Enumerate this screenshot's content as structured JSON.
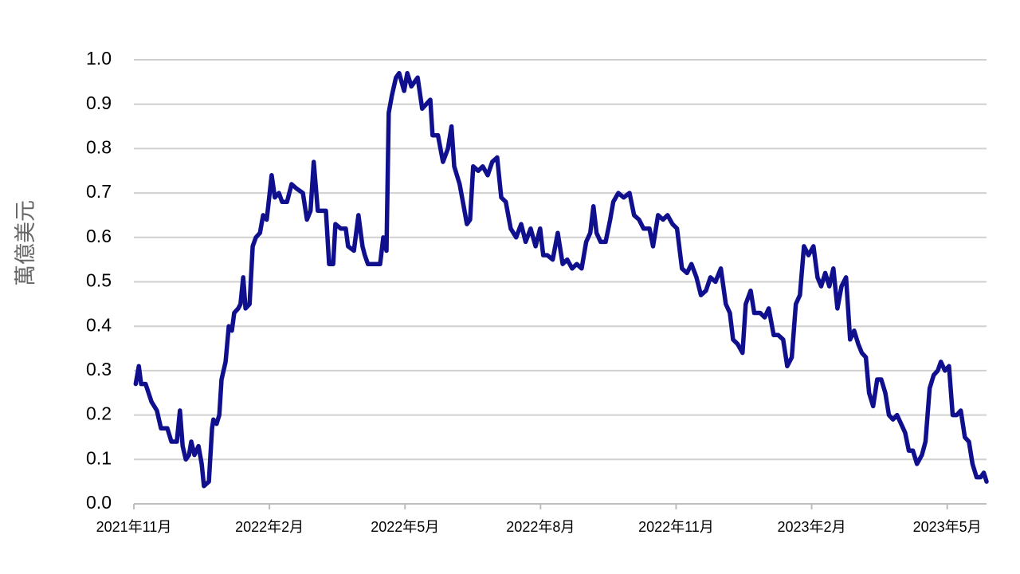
{
  "chart_data": {
    "type": "line",
    "y_label": "萬億美元",
    "color": "#10108f",
    "grid": true,
    "xlim": [
      0,
      18.87
    ],
    "xticks": [
      {
        "value": 0,
        "label": "2021年11月"
      },
      {
        "value": 3,
        "label": "2022年2月"
      },
      {
        "value": 6,
        "label": "2022年5月"
      },
      {
        "value": 9,
        "label": "2022年8月"
      },
      {
        "value": 12,
        "label": "2022年11月"
      },
      {
        "value": 15,
        "label": "2023年2月"
      },
      {
        "value": 18,
        "label": "2023年5月"
      }
    ],
    "ylim": [
      0,
      1
    ],
    "yticks": [
      {
        "value": 0,
        "label": "0.0"
      },
      0.1,
      0.2,
      0.3,
      0.4,
      0.5,
      0.6,
      0.7,
      0.8,
      0.9,
      {
        "value": 1,
        "label": "1.0"
      }
    ],
    "x": [
      0.04,
      0.11,
      0.16,
      0.26,
      0.39,
      0.51,
      0.6,
      0.74,
      0.83,
      0.95,
      1.02,
      1.08,
      1.15,
      1.22,
      1.27,
      1.34,
      1.43,
      1.5,
      1.55,
      1.66,
      1.73,
      1.76,
      1.83,
      1.89,
      1.94,
      2.03,
      2.1,
      2.17,
      2.22,
      2.31,
      2.36,
      2.42,
      2.47,
      2.56,
      2.63,
      2.7,
      2.79,
      2.86,
      2.94,
      3.05,
      3.12,
      3.21,
      3.28,
      3.39,
      3.49,
      3.6,
      3.74,
      3.83,
      3.91,
      3.98,
      4.07,
      4.16,
      4.25,
      4.32,
      4.41,
      4.46,
      4.58,
      4.69,
      4.74,
      4.87,
      4.97,
      5.06,
      5.11,
      5.18,
      5.32,
      5.45,
      5.52,
      5.59,
      5.64,
      5.71,
      5.8,
      5.87,
      5.98,
      6.05,
      6.14,
      6.28,
      6.38,
      6.47,
      6.56,
      6.61,
      6.73,
      6.84,
      6.95,
      7.03,
      7.09,
      7.21,
      7.3,
      7.37,
      7.44,
      7.51,
      7.62,
      7.72,
      7.83,
      7.93,
      8.04,
      8.13,
      8.23,
      8.34,
      8.46,
      8.57,
      8.67,
      8.78,
      8.89,
      8.99,
      9.06,
      9.15,
      9.27,
      9.38,
      9.49,
      9.59,
      9.7,
      9.8,
      9.91,
      10.01,
      10.1,
      10.17,
      10.24,
      10.33,
      10.44,
      10.54,
      10.61,
      10.72,
      10.84,
      10.97,
      11.07,
      11.18,
      11.28,
      11.41,
      11.49,
      11.6,
      11.71,
      11.81,
      11.92,
      12.02,
      12.13,
      12.24,
      12.34,
      12.45,
      12.55,
      12.66,
      12.76,
      12.87,
      12.99,
      13.1,
      13.19,
      13.26,
      13.36,
      13.47,
      13.54,
      13.65,
      13.73,
      13.86,
      13.96,
      14.05,
      14.16,
      14.26,
      14.37,
      14.46,
      14.56,
      14.65,
      14.74,
      14.83,
      14.93,
      15.04,
      15.13,
      15.21,
      15.3,
      15.39,
      15.48,
      15.57,
      15.66,
      15.76,
      15.85,
      15.94,
      16.03,
      16.11,
      16.2,
      16.27,
      16.36,
      16.45,
      16.54,
      16.63,
      16.71,
      16.8,
      16.89,
      16.98,
      17.07,
      17.15,
      17.24,
      17.33,
      17.44,
      17.52,
      17.61,
      17.7,
      17.79,
      17.86,
      17.95,
      18.04,
      18.12,
      18.21,
      18.3,
      18.39,
      18.48,
      18.56,
      18.65,
      18.74,
      18.81,
      18.87
    ],
    "series": [
      {
        "values": [
          0.27,
          0.31,
          0.27,
          0.27,
          0.23,
          0.21,
          0.17,
          0.17,
          0.14,
          0.14,
          0.21,
          0.13,
          0.1,
          0.11,
          0.14,
          0.11,
          0.13,
          0.09,
          0.04,
          0.05,
          0.17,
          0.19,
          0.18,
          0.2,
          0.28,
          0.32,
          0.4,
          0.39,
          0.43,
          0.44,
          0.45,
          0.51,
          0.44,
          0.45,
          0.58,
          0.6,
          0.61,
          0.65,
          0.64,
          0.74,
          0.69,
          0.7,
          0.68,
          0.68,
          0.72,
          0.71,
          0.7,
          0.64,
          0.66,
          0.77,
          0.66,
          0.66,
          0.66,
          0.54,
          0.54,
          0.63,
          0.62,
          0.62,
          0.58,
          0.57,
          0.65,
          0.58,
          0.56,
          0.54,
          0.54,
          0.54,
          0.6,
          0.57,
          0.88,
          0.92,
          0.96,
          0.97,
          0.93,
          0.97,
          0.94,
          0.96,
          0.89,
          0.9,
          0.91,
          0.83,
          0.83,
          0.77,
          0.8,
          0.85,
          0.76,
          0.72,
          0.67,
          0.63,
          0.64,
          0.76,
          0.75,
          0.76,
          0.74,
          0.77,
          0.78,
          0.69,
          0.68,
          0.62,
          0.6,
          0.63,
          0.59,
          0.62,
          0.58,
          0.62,
          0.56,
          0.56,
          0.55,
          0.61,
          0.54,
          0.55,
          0.53,
          0.54,
          0.53,
          0.59,
          0.61,
          0.67,
          0.61,
          0.59,
          0.59,
          0.64,
          0.68,
          0.7,
          0.69,
          0.7,
          0.65,
          0.64,
          0.62,
          0.62,
          0.58,
          0.65,
          0.64,
          0.65,
          0.63,
          0.62,
          0.53,
          0.52,
          0.54,
          0.51,
          0.47,
          0.48,
          0.51,
          0.5,
          0.53,
          0.45,
          0.43,
          0.37,
          0.36,
          0.34,
          0.45,
          0.48,
          0.43,
          0.43,
          0.42,
          0.44,
          0.38,
          0.38,
          0.37,
          0.31,
          0.33,
          0.45,
          0.47,
          0.58,
          0.56,
          0.58,
          0.51,
          0.49,
          0.52,
          0.49,
          0.53,
          0.44,
          0.49,
          0.51,
          0.37,
          0.39,
          0.36,
          0.34,
          0.33,
          0.25,
          0.22,
          0.28,
          0.28,
          0.25,
          0.2,
          0.19,
          0.2,
          0.18,
          0.16,
          0.12,
          0.12,
          0.09,
          0.11,
          0.14,
          0.26,
          0.29,
          0.3,
          0.32,
          0.3,
          0.31,
          0.2,
          0.2,
          0.21,
          0.15,
          0.14,
          0.09,
          0.06,
          0.06,
          0.07,
          0.05
        ]
      }
    ]
  }
}
